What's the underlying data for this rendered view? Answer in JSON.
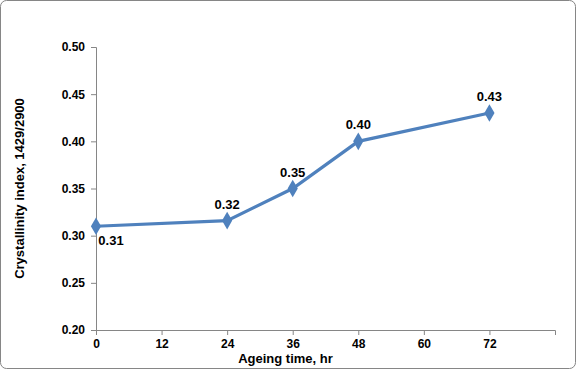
{
  "chart_data": {
    "type": "line",
    "x_label": "Ageing time, hr",
    "y_label": "Crystallinity index, 1429/2900",
    "x": [
      0,
      24,
      36,
      48,
      72
    ],
    "values": [
      0.31,
      0.316,
      0.35,
      0.4,
      0.43
    ],
    "value_labels": [
      "0.31",
      "0.32",
      "0.35",
      "0.40",
      "0.43"
    ],
    "data_labels": true,
    "color": "#4f81bd",
    "marker": "diamond",
    "line_style": "solid",
    "xlim": [
      0,
      84
    ],
    "xticks": [
      0,
      12,
      24,
      36,
      48,
      60,
      72
    ],
    "ylim": [
      0.2,
      0.5
    ],
    "yticks": [
      {
        "value": 0.2,
        "label": "0.20"
      },
      0.25,
      {
        "value": 0.3,
        "label": "0.30"
      },
      0.35,
      {
        "value": 0.4,
        "label": "0.40"
      },
      0.45,
      {
        "value": 0.5,
        "label": "0.50"
      }
    ],
    "grid": false
  }
}
